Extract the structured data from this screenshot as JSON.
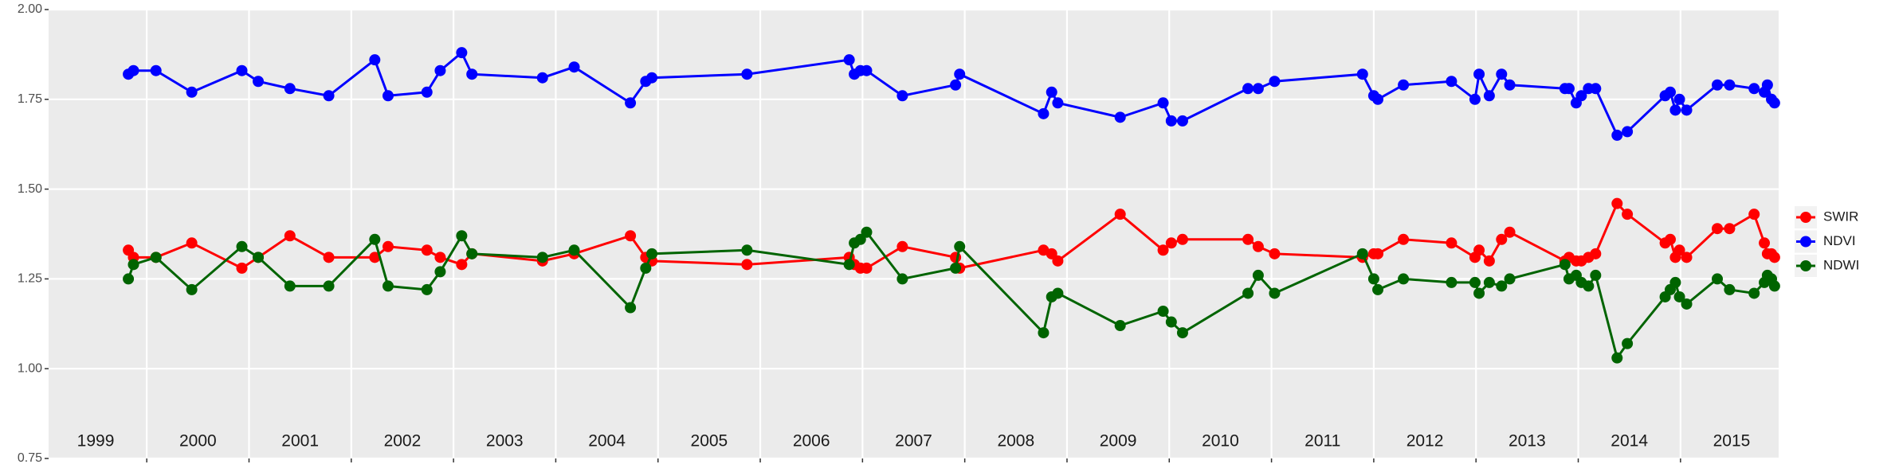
{
  "chart_data": {
    "type": "line",
    "x": [
      1999.82,
      1999.87,
      2000.09,
      2000.44,
      2000.93,
      2001.09,
      2001.4,
      2001.78,
      2002.23,
      2002.36,
      2002.74,
      2002.87,
      2003.08,
      2003.18,
      2003.87,
      2004.18,
      2004.73,
      2004.88,
      2004.94,
      2005.87,
      2006.87,
      2006.92,
      2006.98,
      2007.04,
      2007.39,
      2007.91,
      2007.95,
      2008.77,
      2008.85,
      2008.91,
      2009.52,
      2009.94,
      2010.02,
      2010.13,
      2010.77,
      2010.87,
      2011.03,
      2011.89,
      2012.0,
      2012.04,
      2012.29,
      2012.76,
      2012.99,
      2013.03,
      2013.13,
      2013.25,
      2013.33,
      2013.87,
      2013.91,
      2013.98,
      2014.03,
      2014.1,
      2014.17,
      2014.38,
      2014.48,
      2014.85,
      2014.9,
      2014.95,
      2014.99,
      2015.06,
      2015.36,
      2015.48,
      2015.72,
      2015.82,
      2015.85,
      2015.89,
      2015.92
    ],
    "series": [
      {
        "name": "SWIR",
        "color": "#ff0000",
        "values": [
          1.33,
          1.31,
          1.31,
          1.35,
          1.28,
          1.31,
          1.37,
          1.31,
          1.31,
          1.34,
          1.33,
          1.31,
          1.29,
          1.32,
          1.3,
          1.32,
          1.37,
          1.31,
          1.3,
          1.29,
          1.31,
          1.29,
          1.28,
          1.28,
          1.34,
          1.31,
          1.28,
          1.33,
          1.32,
          1.3,
          1.43,
          1.33,
          1.35,
          1.36,
          1.36,
          1.34,
          1.32,
          1.31,
          1.32,
          1.32,
          1.36,
          1.35,
          1.31,
          1.33,
          1.3,
          1.36,
          1.38,
          1.3,
          1.31,
          1.3,
          1.3,
          1.31,
          1.32,
          1.46,
          1.43,
          1.35,
          1.36,
          1.31,
          1.33,
          1.31,
          1.39,
          1.39,
          1.43,
          1.35,
          1.32,
          1.32,
          1.31
        ]
      },
      {
        "name": "NDVI",
        "color": "#0000ff",
        "values": [
          1.82,
          1.83,
          1.83,
          1.77,
          1.83,
          1.8,
          1.78,
          1.76,
          1.86,
          1.76,
          1.77,
          1.83,
          1.88,
          1.82,
          1.81,
          1.84,
          1.74,
          1.8,
          1.81,
          1.82,
          1.86,
          1.82,
          1.83,
          1.83,
          1.76,
          1.79,
          1.82,
          1.71,
          1.77,
          1.74,
          1.7,
          1.74,
          1.69,
          1.69,
          1.78,
          1.78,
          1.8,
          1.82,
          1.76,
          1.75,
          1.79,
          1.8,
          1.75,
          1.82,
          1.76,
          1.82,
          1.79,
          1.78,
          1.78,
          1.74,
          1.76,
          1.78,
          1.78,
          1.65,
          1.66,
          1.76,
          1.77,
          1.72,
          1.75,
          1.72,
          1.79,
          1.79,
          1.78,
          1.77,
          1.79,
          1.75,
          1.74
        ]
      },
      {
        "name": "NDWI",
        "color": "#006400",
        "values": [
          1.25,
          1.29,
          1.31,
          1.22,
          1.34,
          1.31,
          1.23,
          1.23,
          1.36,
          1.23,
          1.22,
          1.27,
          1.37,
          1.32,
          1.31,
          1.33,
          1.17,
          1.28,
          1.32,
          1.33,
          1.29,
          1.35,
          1.36,
          1.38,
          1.25,
          1.28,
          1.34,
          1.1,
          1.2,
          1.21,
          1.12,
          1.16,
          1.13,
          1.1,
          1.21,
          1.26,
          1.21,
          1.32,
          1.25,
          1.22,
          1.25,
          1.24,
          1.24,
          1.21,
          1.24,
          1.23,
          1.25,
          1.29,
          1.25,
          1.26,
          1.24,
          1.23,
          1.26,
          1.03,
          1.07,
          1.2,
          1.22,
          1.24,
          1.2,
          1.18,
          1.25,
          1.22,
          1.21,
          1.24,
          1.26,
          1.25,
          1.23
        ]
      }
    ],
    "xlim": [
      1999.04,
      2015.96
    ],
    "xticks": [
      2000,
      2001,
      2002,
      2003,
      2004,
      2005,
      2006,
      2007,
      2008,
      2009,
      2010,
      2011,
      2012,
      2013,
      2014,
      2015
    ],
    "year_labels": [
      {
        "value": 1999.5,
        "label": "1999"
      },
      {
        "value": 2000.5,
        "label": "2000"
      },
      {
        "value": 2001.5,
        "label": "2001"
      },
      {
        "value": 2002.5,
        "label": "2002"
      },
      {
        "value": 2003.5,
        "label": "2003"
      },
      {
        "value": 2004.5,
        "label": "2004"
      },
      {
        "value": 2005.5,
        "label": "2005"
      },
      {
        "value": 2006.5,
        "label": "2006"
      },
      {
        "value": 2007.5,
        "label": "2007"
      },
      {
        "value": 2008.5,
        "label": "2008"
      },
      {
        "value": 2009.5,
        "label": "2009"
      },
      {
        "value": 2010.5,
        "label": "2010"
      },
      {
        "value": 2011.5,
        "label": "2011"
      },
      {
        "value": 2012.5,
        "label": "2012"
      },
      {
        "value": 2013.5,
        "label": "2013"
      },
      {
        "value": 2014.5,
        "label": "2014"
      },
      {
        "value": 2015.5,
        "label": "2015"
      }
    ],
    "ylim": [
      0.75,
      2.0
    ],
    "yticks": [
      0.75,
      {
        "value": 1.0,
        "label": "1.00"
      },
      1.25,
      {
        "value": 1.5,
        "label": "1.50"
      },
      1.75,
      {
        "value": 2.0,
        "label": "2.00"
      }
    ],
    "grid": true,
    "legend": "right"
  }
}
